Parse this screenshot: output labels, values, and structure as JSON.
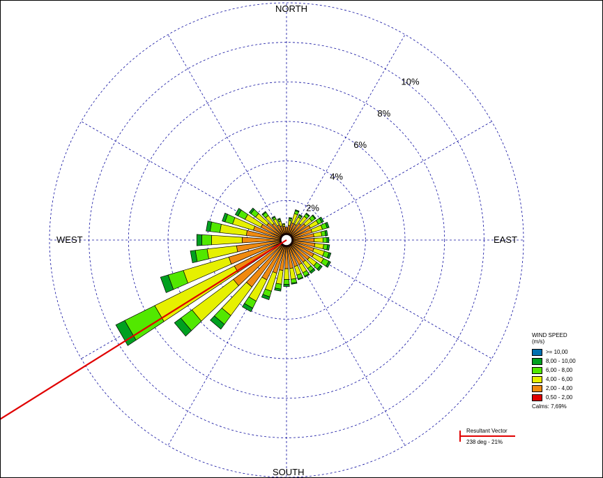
{
  "chart_data": {
    "type": "wind-rose",
    "directions": [
      "NORTH",
      "EAST",
      "SOUTH",
      "WEST"
    ],
    "rings": [
      {
        "value": 2,
        "label": "2%"
      },
      {
        "value": 4,
        "label": "4%"
      },
      {
        "value": 6,
        "label": "6%"
      },
      {
        "value": 8,
        "label": "8%"
      },
      {
        "value": 10,
        "label": "10%"
      }
    ],
    "max_ring": 12,
    "sector_count": 36,
    "grid": true,
    "speed_bins": [
      {
        "label": "0,50 - 2,00",
        "color": "#e00000"
      },
      {
        "label": "2,00 - 4,00",
        "color": "#f08a10"
      },
      {
        "label": "4,00 - 6,00",
        "color": "#e6f000"
      },
      {
        "label": "6,00 - 8,00",
        "color": "#52e800"
      },
      {
        "label": "8,00 - 10,00",
        "color": "#00a020"
      },
      {
        "label": ">= 10,00",
        "color": "#0070b0"
      }
    ],
    "sectors": [
      {
        "dir": 0,
        "values": [
          0.35,
          0.3,
          0.0,
          0.0,
          0.0,
          0.0
        ]
      },
      {
        "dir": 10,
        "values": [
          0.35,
          0.4,
          0.25,
          0.1,
          0.05,
          0.0
        ]
      },
      {
        "dir": 20,
        "values": [
          0.35,
          0.55,
          0.5,
          0.15,
          0.05,
          0.0
        ]
      },
      {
        "dir": 30,
        "values": [
          0.35,
          0.55,
          0.4,
          0.1,
          0.05,
          0.0
        ]
      },
      {
        "dir": 40,
        "values": [
          0.35,
          0.7,
          0.45,
          0.15,
          0.05,
          0.0
        ]
      },
      {
        "dir": 50,
        "values": [
          0.35,
          0.85,
          0.4,
          0.2,
          0.05,
          0.0
        ]
      },
      {
        "dir": 60,
        "values": [
          0.35,
          1.0,
          0.45,
          0.2,
          0.1,
          0.0
        ]
      },
      {
        "dir": 70,
        "values": [
          0.35,
          1.0,
          0.55,
          0.25,
          0.1,
          0.0
        ]
      },
      {
        "dir": 80,
        "values": [
          0.35,
          1.05,
          0.4,
          0.2,
          0.1,
          0.0
        ]
      },
      {
        "dir": 90,
        "values": [
          0.35,
          1.05,
          0.45,
          0.2,
          0.1,
          0.0
        ]
      },
      {
        "dir": 100,
        "values": [
          0.35,
          1.1,
          0.45,
          0.2,
          0.1,
          0.0
        ]
      },
      {
        "dir": 110,
        "values": [
          0.35,
          1.1,
          0.55,
          0.25,
          0.1,
          0.0
        ]
      },
      {
        "dir": 120,
        "values": [
          0.35,
          1.2,
          0.55,
          0.3,
          0.1,
          0.0
        ]
      },
      {
        "dir": 130,
        "values": [
          0.35,
          1.1,
          0.45,
          0.25,
          0.1,
          0.0
        ]
      },
      {
        "dir": 140,
        "values": [
          0.35,
          1.05,
          0.4,
          0.2,
          0.1,
          0.0
        ]
      },
      {
        "dir": 150,
        "values": [
          0.35,
          1.05,
          0.45,
          0.2,
          0.05,
          0.0
        ]
      },
      {
        "dir": 160,
        "values": [
          0.35,
          1.05,
          0.45,
          0.2,
          0.05,
          0.0
        ]
      },
      {
        "dir": 170,
        "values": [
          0.35,
          1.1,
          0.55,
          0.2,
          0.05,
          0.0
        ]
      },
      {
        "dir": 180,
        "values": [
          0.35,
          1.1,
          0.55,
          0.25,
          0.1,
          0.0
        ]
      },
      {
        "dir": 190,
        "values": [
          0.35,
          1.2,
          0.7,
          0.25,
          0.1,
          0.0
        ]
      },
      {
        "dir": 200,
        "values": [
          0.35,
          1.4,
          0.95,
          0.3,
          0.15,
          0.0
        ]
      },
      {
        "dir": 210,
        "values": [
          0.35,
          1.9,
          1.2,
          0.4,
          0.2,
          0.0
        ]
      },
      {
        "dir": 220,
        "values": [
          0.35,
          2.6,
          1.8,
          0.55,
          0.3,
          0.0
        ]
      },
      {
        "dir": 230,
        "values": [
          0.35,
          3.0,
          2.6,
          0.7,
          0.4,
          0.0
        ]
      },
      {
        "dir": 240,
        "values": [
          0.35,
          2.6,
          4.5,
          1.7,
          0.5,
          0.0
        ]
      },
      {
        "dir": 250,
        "values": [
          0.35,
          2.7,
          2.4,
          0.8,
          0.4,
          0.0
        ]
      },
      {
        "dir": 260,
        "values": [
          0.35,
          2.2,
          1.5,
          0.6,
          0.25,
          0.0
        ]
      },
      {
        "dir": 270,
        "values": [
          0.35,
          1.9,
          1.55,
          0.5,
          0.25,
          0.0
        ]
      },
      {
        "dir": 280,
        "values": [
          0.35,
          1.7,
          1.35,
          0.5,
          0.2,
          0.0
        ]
      },
      {
        "dir": 290,
        "values": [
          0.35,
          1.4,
          1.1,
          0.4,
          0.15,
          0.0
        ]
      },
      {
        "dir": 300,
        "values": [
          0.35,
          1.1,
          0.9,
          0.4,
          0.15,
          0.0
        ]
      },
      {
        "dir": 310,
        "values": [
          0.35,
          0.9,
          0.7,
          0.3,
          0.1,
          0.0
        ]
      },
      {
        "dir": 320,
        "values": [
          0.35,
          0.7,
          0.5,
          0.2,
          0.05,
          0.0
        ]
      },
      {
        "dir": 330,
        "values": [
          0.35,
          0.5,
          0.35,
          0.1,
          0.05,
          0.0
        ]
      },
      {
        "dir": 340,
        "values": [
          0.35,
          0.4,
          0.25,
          0.1,
          0.05,
          0.0
        ]
      },
      {
        "dir": 350,
        "values": [
          0.35,
          0.35,
          0.1,
          0.05,
          0.0,
          0.0
        ]
      }
    ],
    "resultant_vector": {
      "direction_deg": 238,
      "percent": 21
    }
  },
  "legend": {
    "title_line1": "WIND SPEED",
    "title_line2": "(m/s)",
    "items": [
      {
        "label": ">= 10,00",
        "color": "#0070b0"
      },
      {
        "label": "8,00 - 10,00",
        "color": "#00a020"
      },
      {
        "label": "6,00 - 8,00",
        "color": "#52e800"
      },
      {
        "label": "4,00 - 6,00",
        "color": "#e6f000"
      },
      {
        "label": "2,00 - 4,00",
        "color": "#f08a10"
      },
      {
        "label": "0,50 - 2,00",
        "color": "#e00000"
      }
    ],
    "calms": "Calms: 7,69%"
  },
  "resultant": {
    "title": "Resultant Vector",
    "value": "238 deg - 21%",
    "color": "#e00000"
  },
  "colors": {
    "grid": "#1010a0",
    "outline": "#000000"
  }
}
